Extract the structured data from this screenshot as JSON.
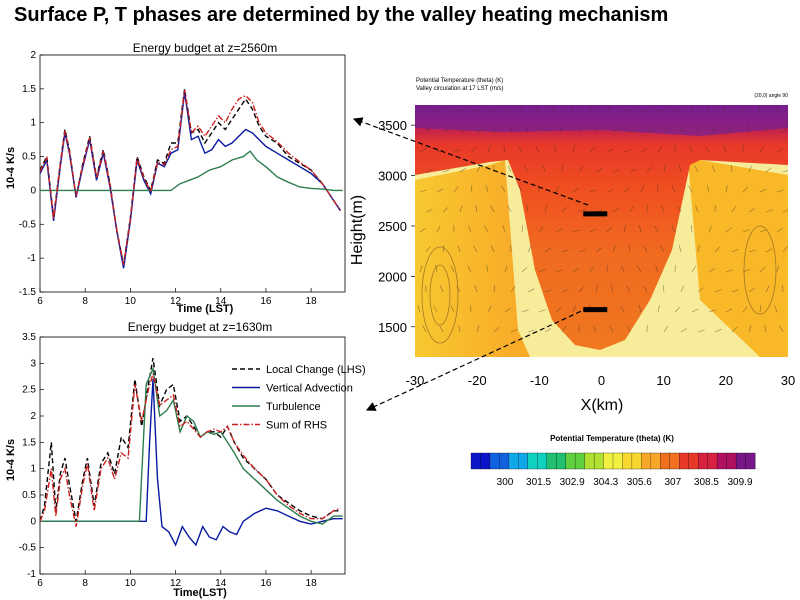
{
  "slide": {
    "title": "Surface P, T phases are determined by the valley heating mechanism"
  },
  "chart_data": [
    {
      "type": "line",
      "title": "Energy budget at z=2560m",
      "xlabel": "Time (LST)",
      "ylabel": "10-4 K/s",
      "xlim": [
        6,
        19.5
      ],
      "ylim": [
        -1.5,
        2
      ],
      "xticks": [
        6,
        8,
        10,
        12,
        14,
        16,
        18
      ],
      "yticks": [
        -1.5,
        -1,
        -0.5,
        0,
        0.5,
        1,
        1.5,
        2
      ],
      "grid": false,
      "series": [
        {
          "name": "Local Change (LHS)",
          "color": "#000000",
          "dash": "dashed",
          "x": [
            6.0,
            6.3,
            6.6,
            6.9,
            7.1,
            7.3,
            7.6,
            7.9,
            8.2,
            8.5,
            8.8,
            9.1,
            9.4,
            9.7,
            10.0,
            10.3,
            10.6,
            10.9,
            11.2,
            11.5,
            11.8,
            12.1,
            12.4,
            12.7,
            13.0,
            13.3,
            13.6,
            13.9,
            14.2,
            14.5,
            14.8,
            15.1,
            15.4,
            15.7,
            16.0,
            16.5,
            17.0,
            17.5,
            18.0,
            18.5,
            19.0,
            19.3
          ],
          "y": [
            0.3,
            0.5,
            -0.4,
            0.4,
            0.9,
            0.6,
            -0.1,
            0.4,
            0.8,
            0.2,
            0.6,
            0.1,
            -0.6,
            -1.1,
            -0.4,
            0.5,
            0.2,
            0.0,
            0.45,
            0.4,
            0.7,
            0.7,
            1.5,
            0.85,
            0.9,
            0.7,
            0.85,
            1.0,
            0.9,
            1.05,
            1.2,
            1.35,
            1.2,
            0.95,
            0.8,
            0.7,
            0.5,
            0.4,
            0.3,
            0.1,
            -0.15,
            -0.3
          ]
        },
        {
          "name": "Vertical Advection",
          "color": "#0a1aa0",
          "dash": "solid",
          "x": [
            6.0,
            6.3,
            6.6,
            6.9,
            7.1,
            7.3,
            7.6,
            7.9,
            8.2,
            8.5,
            8.8,
            9.1,
            9.4,
            9.7,
            10.0,
            10.3,
            10.6,
            10.9,
            11.2,
            11.5,
            11.8,
            12.1,
            12.4,
            12.7,
            13.0,
            13.3,
            13.6,
            13.9,
            14.2,
            14.5,
            14.8,
            15.1,
            15.4,
            15.7,
            16.0,
            16.5,
            17.0,
            17.5,
            18.0,
            18.5,
            19.0,
            19.3
          ],
          "y": [
            0.25,
            0.45,
            -0.45,
            0.35,
            0.85,
            0.55,
            -0.1,
            0.35,
            0.75,
            0.15,
            0.55,
            0.05,
            -0.6,
            -1.15,
            -0.45,
            0.45,
            0.15,
            -0.05,
            0.4,
            0.35,
            0.55,
            0.6,
            1.45,
            0.75,
            0.8,
            0.55,
            0.6,
            0.75,
            0.65,
            0.7,
            0.8,
            0.9,
            0.85,
            0.75,
            0.65,
            0.55,
            0.45,
            0.35,
            0.25,
            0.1,
            -0.15,
            -0.3
          ]
        },
        {
          "name": "Turbulence",
          "color": "#2e7d4f",
          "dash": "solid",
          "x": [
            6.0,
            7.0,
            8.0,
            9.0,
            10.0,
            11.0,
            11.4,
            11.8,
            12.2,
            12.6,
            13.0,
            13.5,
            14.0,
            14.5,
            15.0,
            15.3,
            15.6,
            16.0,
            16.5,
            17.0,
            17.5,
            18.0,
            18.5,
            19.0,
            19.4
          ],
          "y": [
            0,
            0,
            0,
            0,
            0,
            0,
            0,
            0,
            0.1,
            0.15,
            0.2,
            0.3,
            0.35,
            0.45,
            0.5,
            0.58,
            0.45,
            0.35,
            0.2,
            0.12,
            0.05,
            0.03,
            0.02,
            0.0,
            0.0
          ]
        },
        {
          "name": "Sum of RHS",
          "color": "#cc2020",
          "dash": "dashdot",
          "x": [
            6.0,
            6.3,
            6.6,
            6.9,
            7.1,
            7.3,
            7.6,
            7.9,
            8.2,
            8.5,
            8.8,
            9.1,
            9.4,
            9.7,
            10.0,
            10.3,
            10.6,
            10.9,
            11.2,
            11.5,
            11.8,
            12.1,
            12.4,
            12.7,
            13.0,
            13.3,
            13.6,
            13.9,
            14.2,
            14.5,
            14.8,
            15.1,
            15.4,
            15.7,
            16.0,
            16.5,
            17.0,
            17.5,
            18.0,
            18.5,
            19.0,
            19.3
          ],
          "y": [
            0.28,
            0.48,
            -0.42,
            0.38,
            0.88,
            0.58,
            -0.08,
            0.38,
            0.78,
            0.18,
            0.58,
            0.08,
            -0.58,
            -1.1,
            -0.42,
            0.48,
            0.18,
            -0.02,
            0.42,
            0.38,
            0.6,
            0.65,
            1.48,
            0.85,
            0.95,
            0.8,
            0.95,
            1.1,
            1.0,
            1.2,
            1.35,
            1.4,
            1.3,
            1.0,
            0.85,
            0.72,
            0.55,
            0.42,
            0.3,
            0.1,
            -0.15,
            -0.3
          ]
        }
      ]
    },
    {
      "type": "line",
      "title": "Energy budget at z=1630m",
      "xlabel": "Time(LST)",
      "ylabel": "10-4 K/s",
      "xlim": [
        6,
        19.5
      ],
      "ylim": [
        -1,
        3.5
      ],
      "xticks": [
        6,
        8,
        10,
        12,
        14,
        16,
        18
      ],
      "yticks": [
        -1,
        -0.5,
        0,
        0.5,
        1,
        1.5,
        2,
        2.5,
        3,
        3.5
      ],
      "grid": false,
      "legend": "top-right",
      "series": [
        {
          "name": "Local Change (LHS)",
          "color": "#000000",
          "dash": "dashed",
          "x": [
            6.0,
            6.2,
            6.5,
            6.7,
            6.9,
            7.1,
            7.3,
            7.6,
            7.9,
            8.1,
            8.4,
            8.7,
            9.0,
            9.3,
            9.6,
            9.9,
            10.2,
            10.5,
            10.8,
            11.0,
            11.3,
            11.6,
            11.9,
            12.2,
            12.5,
            12.8,
            13.1,
            13.4,
            13.7,
            14.0,
            14.3,
            14.6,
            15.0,
            15.5,
            16.0,
            16.5,
            17.0,
            17.5,
            18.0,
            18.5,
            19.0,
            19.3
          ],
          "y": [
            0,
            0.3,
            1.5,
            0.2,
            0.9,
            1.2,
            0.7,
            0.0,
            0.8,
            1.2,
            0.3,
            1.1,
            1.3,
            0.9,
            1.6,
            1.4,
            2.7,
            1.8,
            2.6,
            3.1,
            2.2,
            2.5,
            2.6,
            1.9,
            2.0,
            1.8,
            1.6,
            1.7,
            1.7,
            1.6,
            1.8,
            1.5,
            1.2,
            1.0,
            0.8,
            0.5,
            0.35,
            0.2,
            0.1,
            0.05,
            0.2,
            0.2
          ]
        },
        {
          "name": "Vertical Advection",
          "color": "#0a1aa0",
          "dash": "solid",
          "x": [
            6.0,
            7.0,
            8.0,
            9.0,
            10.0,
            10.4,
            10.7,
            10.85,
            11.0,
            11.2,
            11.4,
            11.7,
            12.0,
            12.3,
            12.6,
            12.9,
            13.2,
            13.5,
            13.8,
            14.1,
            14.4,
            14.7,
            15.0,
            15.5,
            16.0,
            16.5,
            17.0,
            17.5,
            18.0,
            18.5,
            19.0,
            19.4
          ],
          "y": [
            0,
            0,
            0,
            0,
            0,
            0,
            0,
            1.5,
            2.7,
            0.8,
            -0.1,
            -0.2,
            -0.45,
            -0.1,
            -0.3,
            -0.45,
            -0.1,
            -0.3,
            -0.35,
            -0.1,
            -0.2,
            -0.25,
            0.0,
            0.15,
            0.25,
            0.2,
            0.1,
            0.0,
            -0.05,
            0.0,
            0.05,
            0.05
          ]
        },
        {
          "name": "Turbulence",
          "color": "#2e7d4f",
          "dash": "solid",
          "x": [
            6.0,
            7.0,
            8.0,
            9.0,
            10.0,
            10.4,
            10.7,
            11.0,
            11.3,
            11.6,
            11.9,
            12.2,
            12.5,
            12.8,
            13.1,
            13.4,
            13.7,
            14.0,
            14.3,
            14.6,
            15.0,
            15.5,
            16.0,
            16.5,
            17.0,
            17.5,
            18.0,
            18.5,
            19.0,
            19.4
          ],
          "y": [
            0,
            0,
            0,
            0,
            0,
            0,
            2.6,
            2.9,
            2.0,
            2.1,
            2.3,
            1.7,
            2.0,
            1.9,
            1.6,
            1.7,
            1.65,
            1.7,
            1.5,
            1.3,
            1.0,
            0.8,
            0.6,
            0.4,
            0.25,
            0.1,
            0.0,
            -0.05,
            0.1,
            0.1
          ]
        },
        {
          "name": "Sum of RHS",
          "color": "#cc2020",
          "dash": "dashdot",
          "x": [
            6.0,
            6.2,
            6.5,
            6.7,
            6.9,
            7.1,
            7.3,
            7.6,
            7.9,
            8.1,
            8.4,
            8.7,
            9.0,
            9.3,
            9.6,
            9.9,
            10.2,
            10.5,
            10.8,
            11.0,
            11.3,
            11.6,
            11.9,
            12.2,
            12.5,
            12.8,
            13.1,
            13.4,
            13.7,
            14.0,
            14.3,
            14.6,
            15.0,
            15.5,
            16.0,
            16.5,
            17.0,
            17.5,
            18.0,
            18.5,
            19.0,
            19.3
          ],
          "y": [
            0,
            0.2,
            1.0,
            0.1,
            0.8,
            1.0,
            0.5,
            -0.1,
            0.7,
            1.1,
            0.2,
            1.0,
            1.2,
            0.8,
            1.3,
            1.2,
            2.6,
            1.9,
            2.5,
            2.8,
            2.2,
            2.3,
            2.4,
            1.8,
            1.9,
            1.75,
            1.6,
            1.7,
            1.75,
            1.7,
            1.8,
            1.5,
            1.25,
            1.0,
            0.8,
            0.5,
            0.3,
            0.15,
            0.05,
            0.05,
            0.2,
            0.25
          ]
        }
      ]
    },
    {
      "type": "heatmap",
      "header_line1": "Potential Temperature (theta)   (K)",
      "header_line2": "Valley circulation at 17 LST   (m/s)",
      "header_right": "(20,0) angle 90",
      "xlabel": "X(km)",
      "ylabel": "Height(m)",
      "xlim": [
        -30,
        30
      ],
      "ylim": [
        1200,
        3700
      ],
      "xticks": [
        -30,
        -20,
        -10,
        0,
        10,
        20,
        30
      ],
      "yticks": [
        1500,
        2000,
        2500,
        3000,
        3500
      ],
      "colorbar": {
        "title": "Potential Temperature (theta)   (K)",
        "tick_labels": [
          300,
          301.5,
          302.9,
          304.3,
          305.6,
          307,
          308.5,
          309.9
        ],
        "colors": [
          "#0a14c8",
          "#1060e0",
          "#10a8e8",
          "#10d0c0",
          "#20c070",
          "#60d040",
          "#b0e030",
          "#f0f040",
          "#f8d830",
          "#f8a828",
          "#f07020",
          "#e83828",
          "#d82040",
          "#b01060",
          "#781888"
        ]
      },
      "markers_height_m": [
        2620,
        1670
      ],
      "markers_x_km": [
        -1,
        -1
      ]
    }
  ]
}
